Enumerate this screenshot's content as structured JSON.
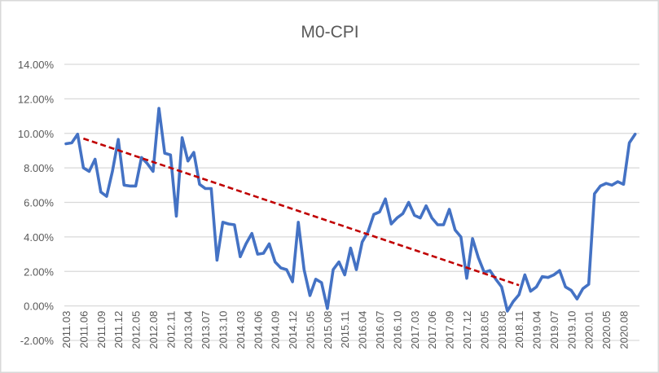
{
  "chart_data": {
    "type": "line",
    "title": "M0-CPI",
    "xlabel": "",
    "ylabel": "",
    "ylim": [
      -2,
      14
    ],
    "yticks": [
      -2,
      0,
      2,
      4,
      6,
      8,
      10,
      12,
      14
    ],
    "ytick_labels": [
      "-2.00%",
      "0.00%",
      "2.00%",
      "4.00%",
      "6.00%",
      "8.00%",
      "10.00%",
      "12.00%",
      "14.00%"
    ],
    "y_unit": "%",
    "grid": "horizontal",
    "legend": "none",
    "x_label_every": 3,
    "categories": [
      "2011.03",
      "2011.04",
      "2011.05",
      "2011.06",
      "2011.07",
      "2011.08",
      "2011.09",
      "2011.10",
      "2011.11",
      "2011.12",
      "2012.03",
      "2012.04",
      "2012.05",
      "2012.06",
      "2012.07",
      "2012.08",
      "2012.09",
      "2012.10",
      "2012.11",
      "2012.12",
      "2013.03",
      "2013.04",
      "2013.05",
      "2013.06",
      "2013.07",
      "2013.08",
      "2013.09",
      "2013.10",
      "2013.11",
      "2013.12",
      "2014.03",
      "2014.04",
      "2014.05",
      "2014.06",
      "2014.07",
      "2014.08",
      "2014.09",
      "2014.10",
      "2014.11",
      "2014.12",
      "2015.03",
      "2015.04",
      "2015.05",
      "2015.06",
      "2015.07",
      "2015.08",
      "2015.09",
      "2015.10",
      "2015.11",
      "2015.12",
      "2016.03",
      "2016.04",
      "2016.05",
      "2016.06",
      "2016.07",
      "2016.08",
      "2016.09",
      "2016.10",
      "2016.11",
      "2016.12",
      "2017.03",
      "2017.04",
      "2017.05",
      "2017.06",
      "2017.07",
      "2017.08",
      "2017.09",
      "2017.10",
      "2017.11",
      "2017.12",
      "2018.03",
      "2018.04",
      "2018.05",
      "2018.06",
      "2018.07",
      "2018.08",
      "2018.09",
      "2018.10",
      "2018.11",
      "2018.12",
      "2019.03",
      "2019.04",
      "2019.05",
      "2019.06",
      "2019.07",
      "2019.08",
      "2019.09",
      "2019.10",
      "2019.11",
      "2019.12",
      "2020.01",
      "2020.03",
      "2020.04",
      "2020.05",
      "2020.06",
      "2020.07",
      "2020.08",
      "2020.09",
      "2020.10"
    ],
    "series": [
      {
        "color": "#4472C4",
        "values": [
          9.4,
          9.45,
          9.95,
          8.0,
          7.8,
          8.5,
          6.6,
          6.35,
          7.8,
          9.65,
          7.0,
          6.95,
          6.95,
          8.6,
          8.25,
          7.8,
          11.45,
          8.85,
          8.75,
          5.2,
          9.75,
          8.4,
          8.9,
          7.05,
          6.8,
          6.8,
          2.65,
          4.85,
          4.75,
          4.7,
          2.85,
          3.6,
          4.2,
          3.0,
          3.05,
          3.6,
          2.55,
          2.2,
          2.1,
          1.4,
          4.85,
          2.1,
          0.6,
          1.55,
          1.35,
          -0.15,
          2.1,
          2.55,
          1.8,
          3.35,
          2.1,
          3.7,
          4.3,
          5.3,
          5.45,
          6.2,
          4.75,
          5.1,
          5.35,
          6.0,
          5.25,
          5.1,
          5.8,
          5.1,
          4.7,
          4.7,
          5.6,
          4.4,
          4.0,
          1.6,
          3.9,
          2.8,
          1.95,
          2.05,
          1.55,
          1.1,
          -0.3,
          0.25,
          0.65,
          1.8,
          0.85,
          1.1,
          1.7,
          1.65,
          1.8,
          2.05,
          1.1,
          0.9,
          0.4,
          1.0,
          1.25,
          6.5,
          6.95,
          7.1,
          7.0,
          7.2,
          7.05,
          9.45,
          9.95
        ]
      }
    ],
    "trendline": {
      "type": "linear",
      "style": "dashed",
      "color": "#C00000",
      "start_category": "2011.06",
      "end_category": "2018.11",
      "start_value": 9.7,
      "end_value": 1.2
    }
  }
}
